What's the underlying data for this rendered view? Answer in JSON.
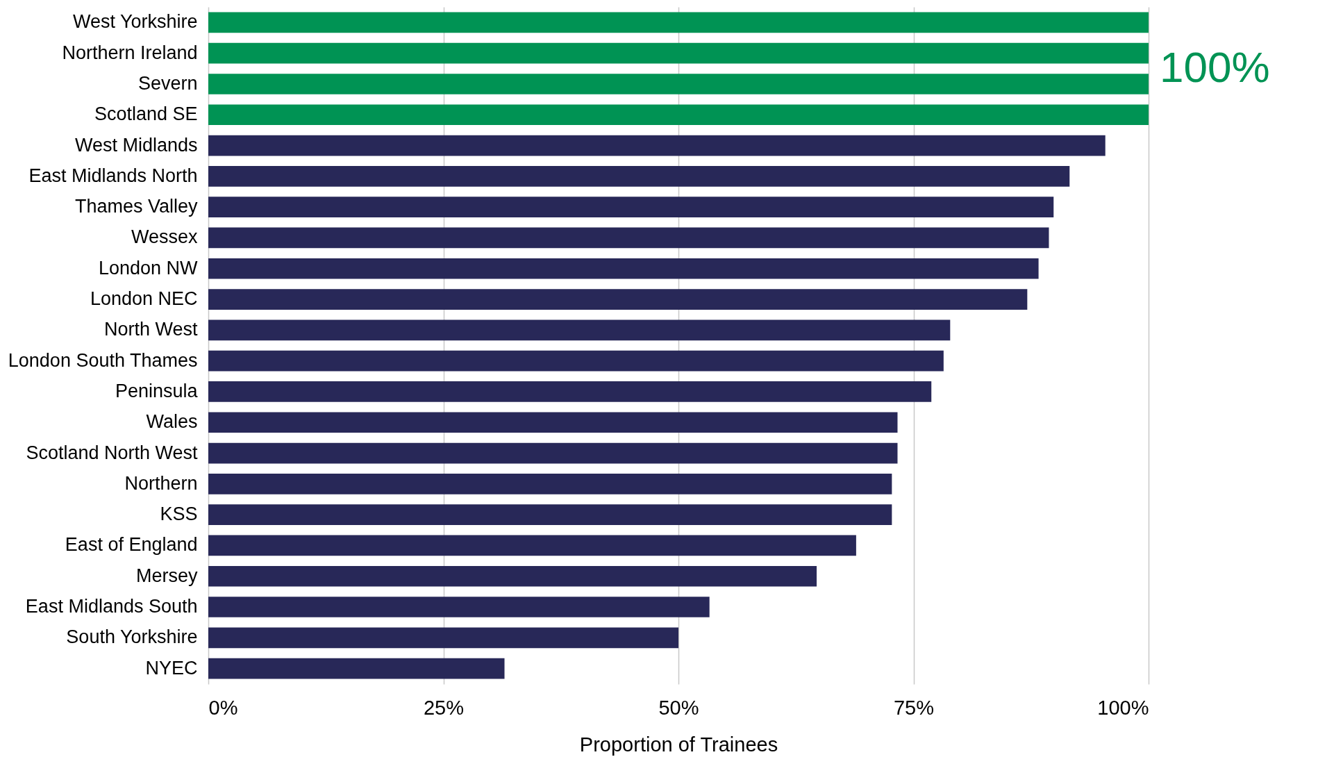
{
  "chart_data": {
    "type": "bar",
    "orientation": "horizontal",
    "xlabel": "Proportion of Trainees",
    "categories": [
      "West Yorkshire",
      "Northern Ireland",
      "Severn",
      "Scotland SE",
      "West Midlands",
      "East Midlands North",
      "Thames Valley",
      "Wessex",
      "London NW",
      "London NEC",
      "North West",
      "London South Thames",
      "Peninsula",
      "Wales",
      "Scotland North West",
      "Northern",
      "KSS",
      "East of England",
      "Mersey",
      "East Midlands South",
      "South Yorkshire",
      "NYEC"
    ],
    "values": [
      100,
      100,
      100,
      100,
      95.4,
      91.6,
      89.9,
      89.4,
      88.3,
      87.1,
      78.9,
      78.2,
      76.9,
      73.3,
      73.3,
      72.7,
      72.7,
      68.9,
      64.7,
      53.3,
      50.0,
      31.5
    ],
    "colors": [
      "#009354",
      "#009354",
      "#009354",
      "#009354",
      "#282858",
      "#282858",
      "#282858",
      "#282858",
      "#282858",
      "#282858",
      "#282858",
      "#282858",
      "#282858",
      "#282858",
      "#282858",
      "#282858",
      "#282858",
      "#282858",
      "#282858",
      "#282858",
      "#282858",
      "#282858"
    ],
    "xlim": [
      0,
      100
    ],
    "xticks": [
      {
        "value": 0,
        "label": "0%"
      },
      {
        "value": 25,
        "label": "25%"
      },
      {
        "value": 50,
        "label": "50%"
      },
      {
        "value": 75,
        "label": "75%"
      },
      {
        "value": 100,
        "label": "100%"
      }
    ],
    "grid": "x",
    "annotations": [
      {
        "text": "100%",
        "x": 100,
        "y": "Northern Ireland"
      }
    ]
  }
}
